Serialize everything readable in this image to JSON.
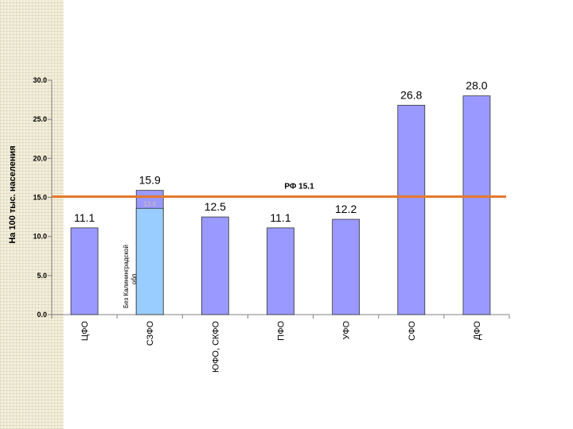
{
  "chart_data": {
    "type": "bar",
    "ylabel": "На 100 тыс. населения",
    "ylim": [
      0,
      30
    ],
    "yticks": [
      "0.0",
      "5.0",
      "10.0",
      "15.0",
      "20.0",
      "25.0",
      "30.0"
    ],
    "ytick_values": [
      0,
      5,
      10,
      15,
      20,
      25,
      30
    ],
    "categories": [
      "ЦФО",
      "СЗФО",
      "ЮФО, СКФО",
      "ПФО",
      "УФО",
      "СФО",
      "ДФО"
    ],
    "values": [
      11.1,
      15.9,
      12.5,
      11.1,
      12.2,
      26.8,
      28.0
    ],
    "value_labels": [
      "11.1",
      "15.9",
      "12.5",
      "11.1",
      "12.2",
      "26.8",
      "28.0"
    ],
    "sub_bar": {
      "category": "СЗФО",
      "value": 13.6,
      "label": "Без Калининградской обл",
      "top_label": "13.6"
    },
    "reference_line": {
      "value": 15.1,
      "label": "РФ 15.1"
    },
    "grid": false,
    "legend": "none",
    "colors": {
      "bar": "#9999ff",
      "sub_bar": "#99ccff",
      "reference": "#e8782a",
      "axis": "#808080"
    }
  }
}
